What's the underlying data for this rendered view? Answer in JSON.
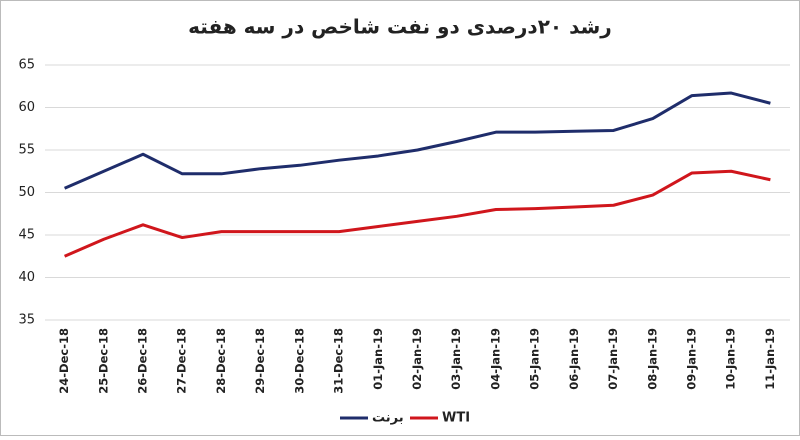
{
  "chart_data": {
    "type": "line",
    "title": "رشد ۲۰درصدی دو نفت شاخص در سه هفته",
    "categories": [
      "24-Dec-18",
      "25-Dec-18",
      "26-Dec-18",
      "27-Dec-18",
      "28-Dec-18",
      "29-Dec-18",
      "30-Dec-18",
      "31-Dec-18",
      "01-Jan-19",
      "02-Jan-19",
      "03-Jan-19",
      "04-Jan-19",
      "05-Jan-19",
      "06-Jan-19",
      "07-Jan-19",
      "08-Jan-19",
      "09-Jan-19",
      "10-Jan-19",
      "11-Jan-19"
    ],
    "series": [
      {
        "name": "برنت",
        "color": "#1f2d6b",
        "values": [
          50.5,
          52.5,
          54.5,
          52.2,
          52.2,
          52.8,
          53.2,
          53.8,
          54.3,
          55,
          56,
          57.1,
          57.1,
          57.2,
          57.3,
          58.7,
          61.4,
          61.7,
          60.5
        ]
      },
      {
        "name": "WTI",
        "color": "#d0161c",
        "values": [
          42.5,
          44.5,
          46.2,
          44.7,
          45.4,
          45.4,
          45.4,
          45.4,
          46,
          46.6,
          47.2,
          48,
          48.1,
          48.3,
          48.5,
          49.7,
          52.3,
          52.5,
          51.5
        ]
      }
    ],
    "ylim": [
      35,
      65
    ],
    "yticks": [
      35,
      40,
      45,
      50,
      55,
      60,
      65
    ],
    "grid": true
  }
}
